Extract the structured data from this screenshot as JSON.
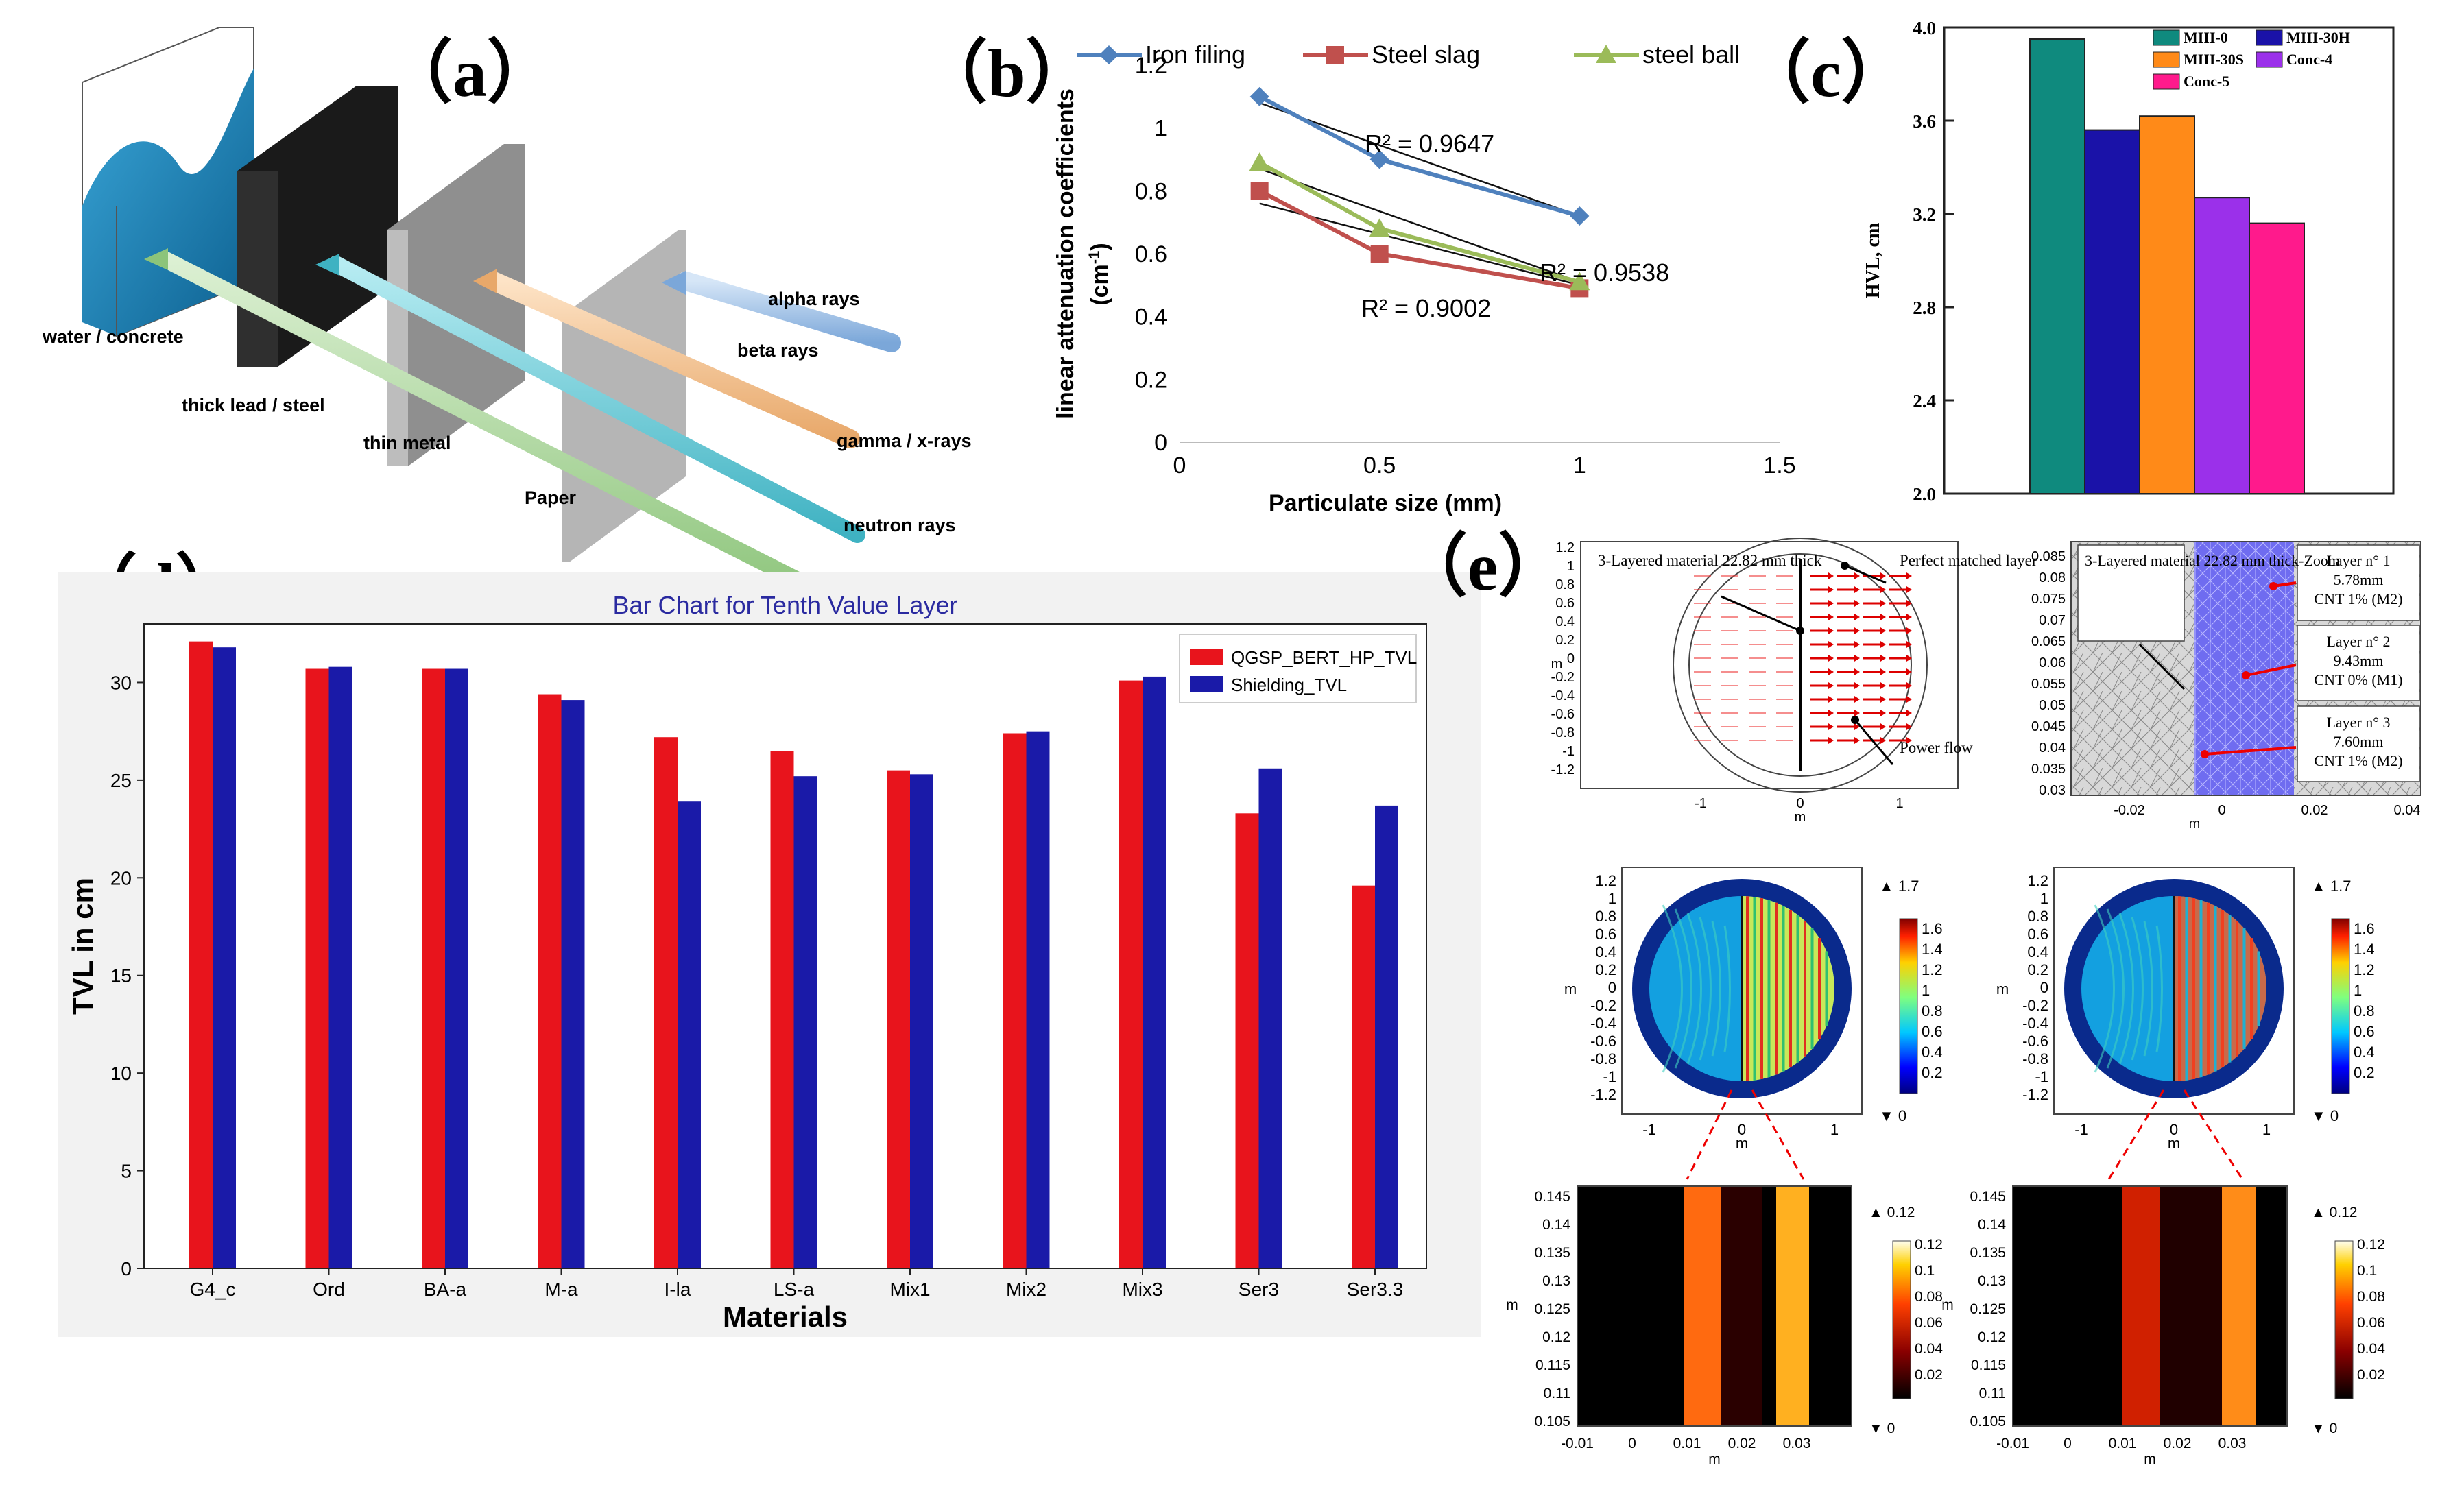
{
  "panel_labels": {
    "a": "（a）",
    "b": "（b）",
    "c": "（c）",
    "d": "（d）",
    "e": "（e）"
  },
  "panel_a": {
    "rays": [
      "alpha rays",
      "beta rays",
      "gamma / x-rays",
      "neutron rays"
    ],
    "materials": [
      "Paper",
      "thin metal",
      "thick lead / steel",
      "water / concrete"
    ],
    "colors": {
      "alpha": "#a9c9ec",
      "beta": "#f4c79a",
      "gamma": "#79cdd8",
      "neutron": "#b5d9a8"
    }
  },
  "chart_data": [
    {
      "id": "b",
      "type": "line",
      "title": "",
      "xlabel": "Particulate  size (mm)",
      "ylabel": "linear attenuation coefficients",
      "ylabel_unit": "(cm",
      "ylabel_unit_sup": "-1",
      "ylabel_unit_end": ")",
      "xlim": [
        0,
        1.5
      ],
      "ylim": [
        0,
        1.2
      ],
      "xticks": [
        "0",
        "0.5",
        "1",
        "1.5"
      ],
      "yticks": [
        "0",
        "0.2",
        "0.4",
        "0.6",
        "0.8",
        "1",
        "1.2"
      ],
      "x": [
        0.2,
        0.5,
        1.0
      ],
      "series": [
        {
          "name": "Iron filing",
          "values": [
            1.1,
            0.9,
            0.72
          ],
          "color": "#4f81bd",
          "marker": "diamond",
          "fit": [
            1.08,
            0.72
          ]
        },
        {
          "name": "Steel slag",
          "values": [
            0.8,
            0.6,
            0.49
          ],
          "color": "#c0504d",
          "marker": "square",
          "fit": [
            0.76,
            0.5
          ]
        },
        {
          "name": "steel ball",
          "values": [
            0.89,
            0.68,
            0.51
          ],
          "color": "#9bbb59",
          "marker": "triangle",
          "fit": [
            0.87,
            0.51
          ]
        }
      ],
      "annotations": [
        "R² = 0.9647",
        "R² = 0.9538",
        "R² = 0.9002"
      ]
    },
    {
      "id": "c",
      "type": "bar",
      "ylabel": "HVL, cm",
      "ylim": [
        2.0,
        4.0
      ],
      "yticks": [
        "2.0",
        "2.4",
        "2.8",
        "3.2",
        "3.6",
        "4.0"
      ],
      "categories": [
        "MIII-0",
        "MIII-30H",
        "MIII-30S",
        "Conc-4",
        "Conc-5"
      ],
      "values": [
        3.95,
        3.56,
        3.62,
        3.27,
        3.16
      ],
      "colors": [
        "#0f8a7e",
        "#1a12a8",
        "#ff8a18",
        "#9b30ea",
        "#ff1a8c"
      ]
    },
    {
      "id": "d",
      "type": "bar",
      "title": "Bar Chart for Tenth Value Layer",
      "xlabel": "Materials",
      "ylabel": "TVL in cm",
      "ylim": [
        0,
        33
      ],
      "yticks": [
        "0",
        "5",
        "10",
        "15",
        "20",
        "25",
        "30"
      ],
      "categories": [
        "G4_c",
        "Ord",
        "BA-a",
        "M-a",
        "I-la",
        "LS-a",
        "Mix1",
        "Mix2",
        "Mix3",
        "Ser3",
        "Ser3.3"
      ],
      "series": [
        {
          "name": "QGSP_BERT_HP_TVL",
          "color": "#e8141c",
          "values": [
            32.1,
            30.7,
            30.7,
            29.4,
            27.2,
            26.5,
            25.5,
            27.4,
            30.1,
            23.3,
            19.6
          ]
        },
        {
          "name": "Shielding_TVL",
          "color": "#1a1aa8",
          "values": [
            31.8,
            30.8,
            30.7,
            29.1,
            23.9,
            25.2,
            25.3,
            27.5,
            30.3,
            25.6,
            23.7
          ]
        }
      ]
    }
  ],
  "panel_e": {
    "geom1": {
      "label1": "3-Layered material 22.82 mm thick",
      "label2": "Perfect matched layer",
      "label3": "Power flow",
      "xticks": [
        "-1",
        "0",
        "1"
      ],
      "yticks": [
        "1.2",
        "1",
        "0.8",
        "0.6",
        "0.4",
        "0.2",
        "0",
        "-0.2",
        "-0.4",
        "-0.6",
        "-0.8",
        "-1",
        "-1.2"
      ],
      "axis": "m"
    },
    "geom2": {
      "label": "3-Layered material 22.82 mm thick-Zoom",
      "layers": [
        "Layer n° 1",
        "5.78mm",
        "CNT 1% (M2)",
        "Layer n° 2",
        "9.43mm",
        "CNT 0% (M1)",
        "Layer n° 3",
        "7.60mm",
        "CNT 1% (M2)"
      ],
      "xticks": [
        "-0.02",
        "0",
        "0.02",
        "0.04"
      ],
      "yticks": [
        "0.085",
        "0.08",
        "0.075",
        "0.07",
        "0.065",
        "0.06",
        "0.055",
        "0.05",
        "0.045",
        "0.04",
        "0.035",
        "0.03"
      ]
    },
    "field_colorbar": {
      "max": "▲ 1.7",
      "min": "▼ 0",
      "ticks": [
        "1.6",
        "1.4",
        "1.2",
        "1",
        "0.8",
        "0.6",
        "0.4",
        "0.2"
      ]
    },
    "zoom_colorbar": {
      "max": "▲ 0.12",
      "min": "▼ 0",
      "ticks": [
        "0.12",
        "0.1",
        "0.08",
        "0.06",
        "0.04",
        "0.02"
      ]
    },
    "zoom_xticks": [
      "-0.01",
      "0",
      "0.01",
      "0.02",
      "0.03"
    ],
    "zoom_yticks": [
      "0.145",
      "0.14",
      "0.135",
      "0.13",
      "0.125",
      "0.12",
      "0.115",
      "0.11",
      "0.105"
    ],
    "circle_xticks": [
      "-1",
      "0",
      "1"
    ],
    "circle_yticks": [
      "1.2",
      "1",
      "0.8",
      "0.6",
      "0.4",
      "0.2",
      "0",
      "-0.2",
      "-0.4",
      "-0.6",
      "-0.8",
      "-1",
      "-1.2"
    ],
    "axis_unit": "m"
  }
}
